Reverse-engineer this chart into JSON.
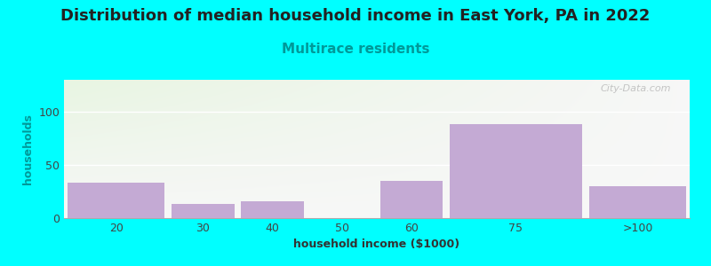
{
  "title": "Distribution of median household income in East York, PA in 2022",
  "subtitle": "Multirace residents",
  "xlabel": "household income ($1000)",
  "ylabel": "households",
  "background_color": "#00FFFF",
  "bar_color": "#c4aad4",
  "categories": [
    "20",
    "30",
    "40",
    "50",
    "60",
    "75",
    ">100"
  ],
  "bar_lefts": [
    10,
    25,
    35,
    45,
    55,
    65,
    85
  ],
  "bar_widths": [
    15,
    10,
    10,
    10,
    10,
    20,
    15
  ],
  "values": [
    33,
    13,
    16,
    0,
    35,
    88,
    30
  ],
  "tick_positions": [
    17.5,
    30,
    40,
    50,
    60,
    75,
    92.5
  ],
  "xlim": [
    10,
    100
  ],
  "ylim": [
    0,
    130
  ],
  "yticks": [
    0,
    50,
    100
  ],
  "title_fontsize": 13,
  "subtitle_fontsize": 11,
  "axis_label_fontsize": 9,
  "tick_fontsize": 9,
  "watermark": "City-Data.com"
}
